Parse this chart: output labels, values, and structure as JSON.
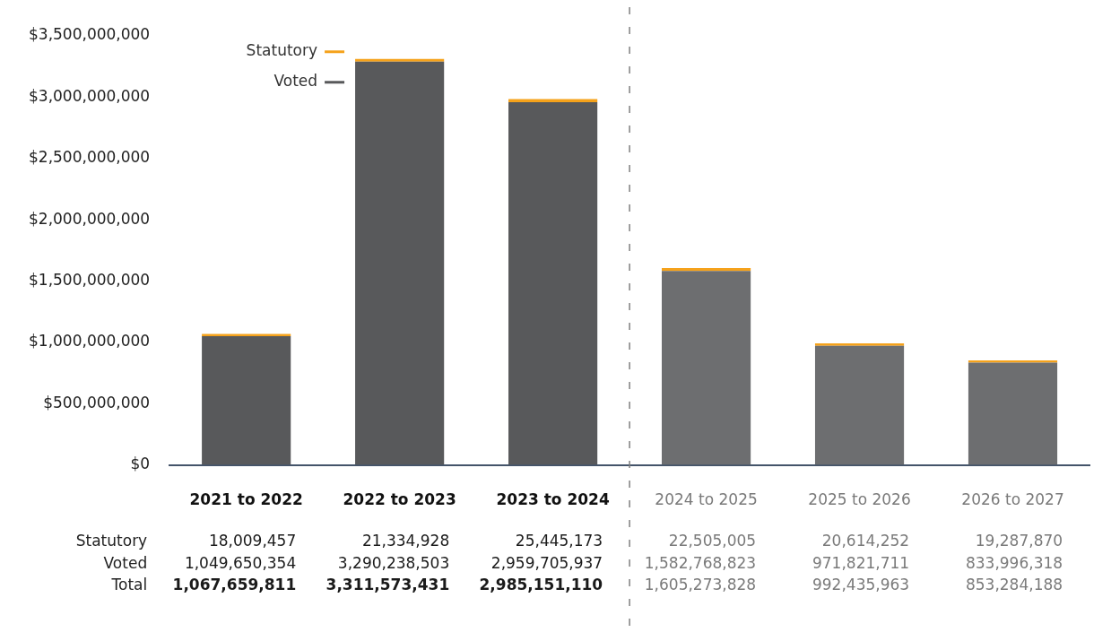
{
  "chart_data": {
    "type": "bar",
    "stacked": true,
    "categories": [
      "2021 to 2022",
      "2022 to 2023",
      "2023 to 2024",
      "2024 to 2025",
      "2025 to 2026",
      "2026 to 2027"
    ],
    "series": [
      {
        "name": "Voted",
        "colors": [
          "#58595b",
          "#58595b",
          "#58595b",
          "#6d6e70",
          "#6d6e70",
          "#6d6e70"
        ],
        "values": [
          1049650354,
          3290238503,
          2959705937,
          1582768823,
          971821711,
          833996318
        ],
        "value_labels": [
          "1,049,650,354",
          "3,290,238,503",
          "2,959,705,937",
          "1,582,768,823",
          "971,821,711",
          "833,996,318"
        ]
      },
      {
        "name": "Statutory",
        "colors": [
          "#f5a21b",
          "#f5a21b",
          "#f5a21b",
          "#f5a21b",
          "#f5a21b",
          "#f5a21b"
        ],
        "values": [
          18009457,
          21334928,
          25445173,
          22505005,
          20614252,
          19287870
        ],
        "value_labels": [
          "18,009,457",
          "21,334,928",
          "25,445,173",
          "22,505,005",
          "20,614,252",
          "19,287,870"
        ]
      }
    ],
    "ylim": [
      0,
      3500000000
    ],
    "yticks": [
      {
        "value": 0,
        "label": "$0"
      },
      {
        "value": 500000000,
        "label": "$500,000,000"
      },
      {
        "value": 1000000000,
        "label": "$1,000,000,000"
      },
      {
        "value": 1500000000,
        "label": "$1,500,000,000"
      },
      {
        "value": 2000000000,
        "label": "$2,000,000,000"
      },
      {
        "value": 2500000000,
        "label": "$2,500,000,000"
      },
      {
        "value": 3000000000,
        "label": "$3,000,000,000"
      },
      {
        "value": 3500000000,
        "label": "$3,500,000,000"
      }
    ],
    "grid": false,
    "legend": "top left",
    "annotations": [
      "Total",
      "1,067,659,811",
      "3,311,573,431",
      "2,985,151,110",
      "1,605,273,828",
      "992,435,963",
      "853,284,188"
    ]
  }
}
